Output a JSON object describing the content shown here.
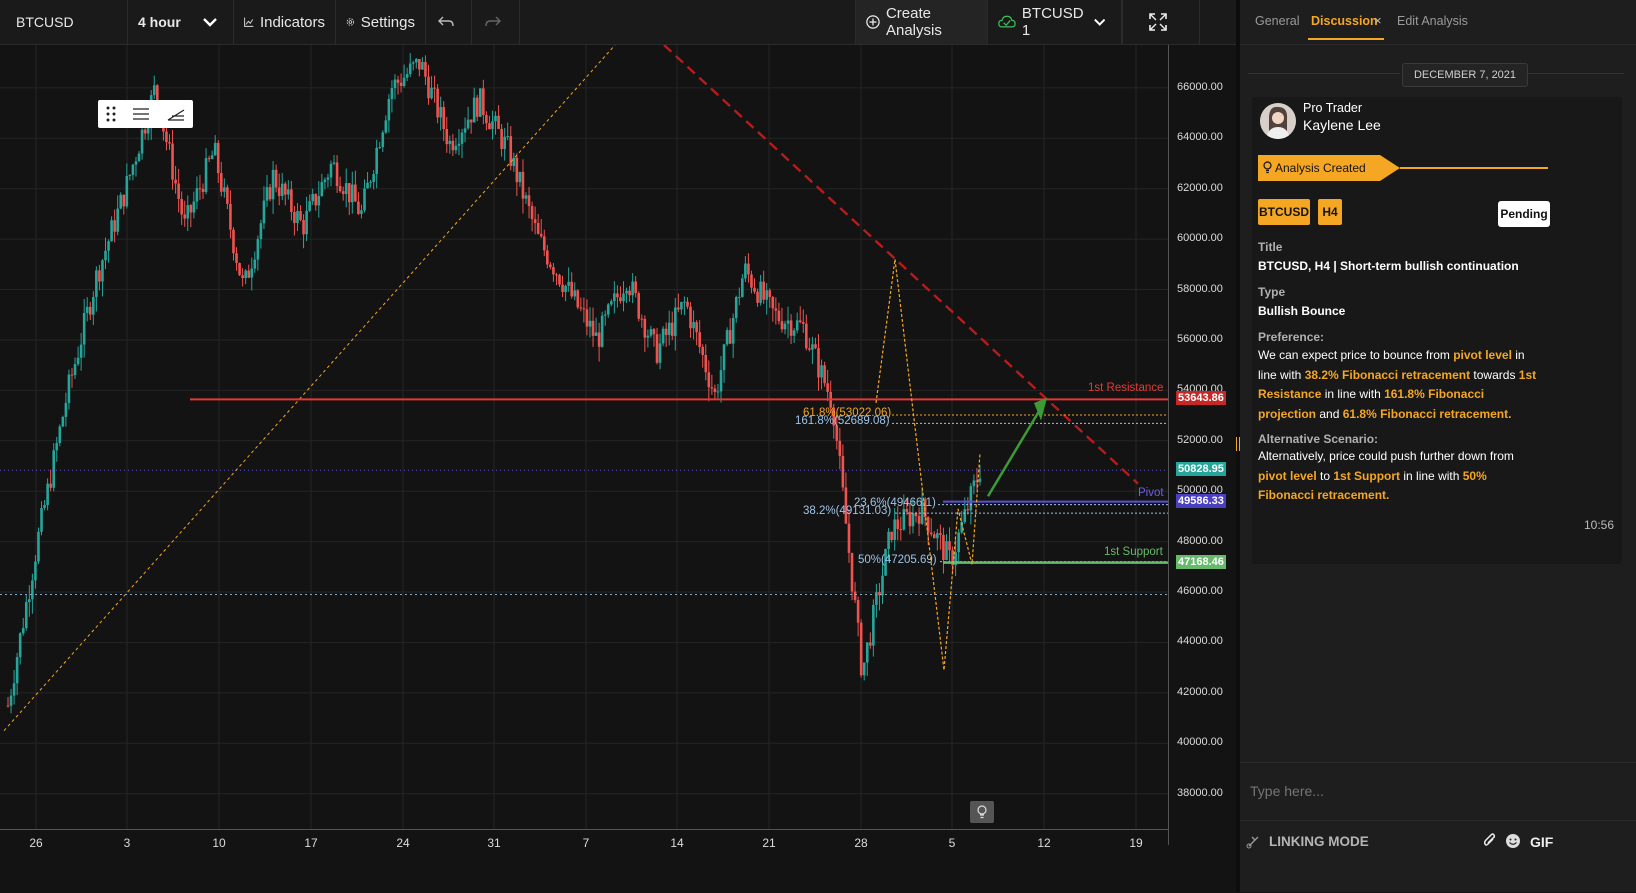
{
  "toolbar": {
    "symbol": "BTCUSD",
    "interval": "4 hour",
    "indicators": "Indicators",
    "settings": "Settings",
    "create_analysis": "Create Analysis",
    "layout_name": "BTCUSD 1"
  },
  "panel": {
    "tabs": [
      "General",
      "Discussion",
      "Edit Analysis"
    ],
    "date": "DECEMBER 7, 2021",
    "author_role": "Pro Trader",
    "author_name": "Kaylene Lee",
    "event": "Analysis Created",
    "badges": [
      "BTCUSD",
      "H4"
    ],
    "status": "Pending",
    "title_label": "Title",
    "title": "BTCUSD, H4 | Short-term bullish continuation",
    "type_label": "Type",
    "type": "Bullish Bounce",
    "preference_label": "Preference:",
    "preference": [
      {
        "t": "We can expect price to bounce from ",
        "h": false
      },
      {
        "t": "pivot level",
        "h": true
      },
      {
        "t": " in line with ",
        "h": false
      },
      {
        "t": "38.2% Fibonacci retracement",
        "h": true
      },
      {
        "t": " towards ",
        "h": false
      },
      {
        "t": "1st Resistance",
        "h": true
      },
      {
        "t": " in line with ",
        "h": false
      },
      {
        "t": "161.8% Fibonacci projection",
        "h": true
      },
      {
        "t": " and ",
        "h": false
      },
      {
        "t": "61.8% Fibonacci retracement.",
        "h": true
      }
    ],
    "alternative_label": "Alternative Scenario:",
    "alternative": [
      {
        "t": "Alternatively, price could push further down from ",
        "h": false
      },
      {
        "t": "pivot level",
        "h": true
      },
      {
        "t": " to ",
        "h": false
      },
      {
        "t": "1st Support",
        "h": true
      },
      {
        "t": " in line with ",
        "h": false
      },
      {
        "t": "50% Fibonacci retracement.",
        "h": true
      }
    ],
    "time": "10:56",
    "input_placeholder": "Type here...",
    "linking_mode": "LINKING MODE",
    "gif": "GIF"
  },
  "colors": {
    "accent": "#f5a623",
    "bull": "#26a69a",
    "bear": "#ef5350",
    "resistance": "#e53935",
    "support": "#66bb6a",
    "pivot": "#5c4fd6"
  },
  "chart_data": {
    "type": "line",
    "title": "",
    "xlabel": "",
    "ylabel": "",
    "x_ticks": [
      "26",
      "3",
      "10",
      "17",
      "24",
      "31",
      "7",
      "14",
      "21",
      "28",
      "5",
      "12",
      "19"
    ],
    "y_ticks": [
      "38000.00",
      "40000.00",
      "42000.00",
      "44000.00",
      "46000.00",
      "48000.00",
      "50000.00",
      "52000.00",
      "54000.00",
      "56000.00",
      "58000.00",
      "60000.00",
      "62000.00",
      "64000.00",
      "66000.00"
    ],
    "ylim": [
      36600,
      67700
    ],
    "grid": true,
    "series": [
      {
        "values": [
          41500,
          48000,
          53800,
          58500,
          62000,
          66000,
          60500,
          63500,
          58000,
          62500,
          60500,
          63000,
          61000,
          66000,
          67000,
          63800,
          65500,
          63500,
          60000,
          58000,
          56000,
          58500,
          55500,
          57500,
          53800,
          58800,
          57000,
          56500,
          53500,
          42800,
          48500,
          49300,
          47200,
          50900
        ]
      }
    ],
    "levels": [
      {
        "label": "1st Resistance",
        "value": 53643.86
      },
      {
        "label": "Pivot",
        "value": 49586.33
      },
      {
        "label": "1st Support",
        "value": 47168.46
      }
    ],
    "current_price": 50828.95,
    "fibonacci": [
      {
        "label": "61.8%(53022.06)",
        "value": 53022.06
      },
      {
        "label": "161.8%(52689.08)",
        "value": 52689.08
      },
      {
        "label": "23.6%(49466.1)",
        "value": 49466.1
      },
      {
        "label": "38.2%(49131.03)",
        "value": 49131.03
      },
      {
        "label": "50%(47205.69)",
        "value": 47205.69
      }
    ]
  }
}
